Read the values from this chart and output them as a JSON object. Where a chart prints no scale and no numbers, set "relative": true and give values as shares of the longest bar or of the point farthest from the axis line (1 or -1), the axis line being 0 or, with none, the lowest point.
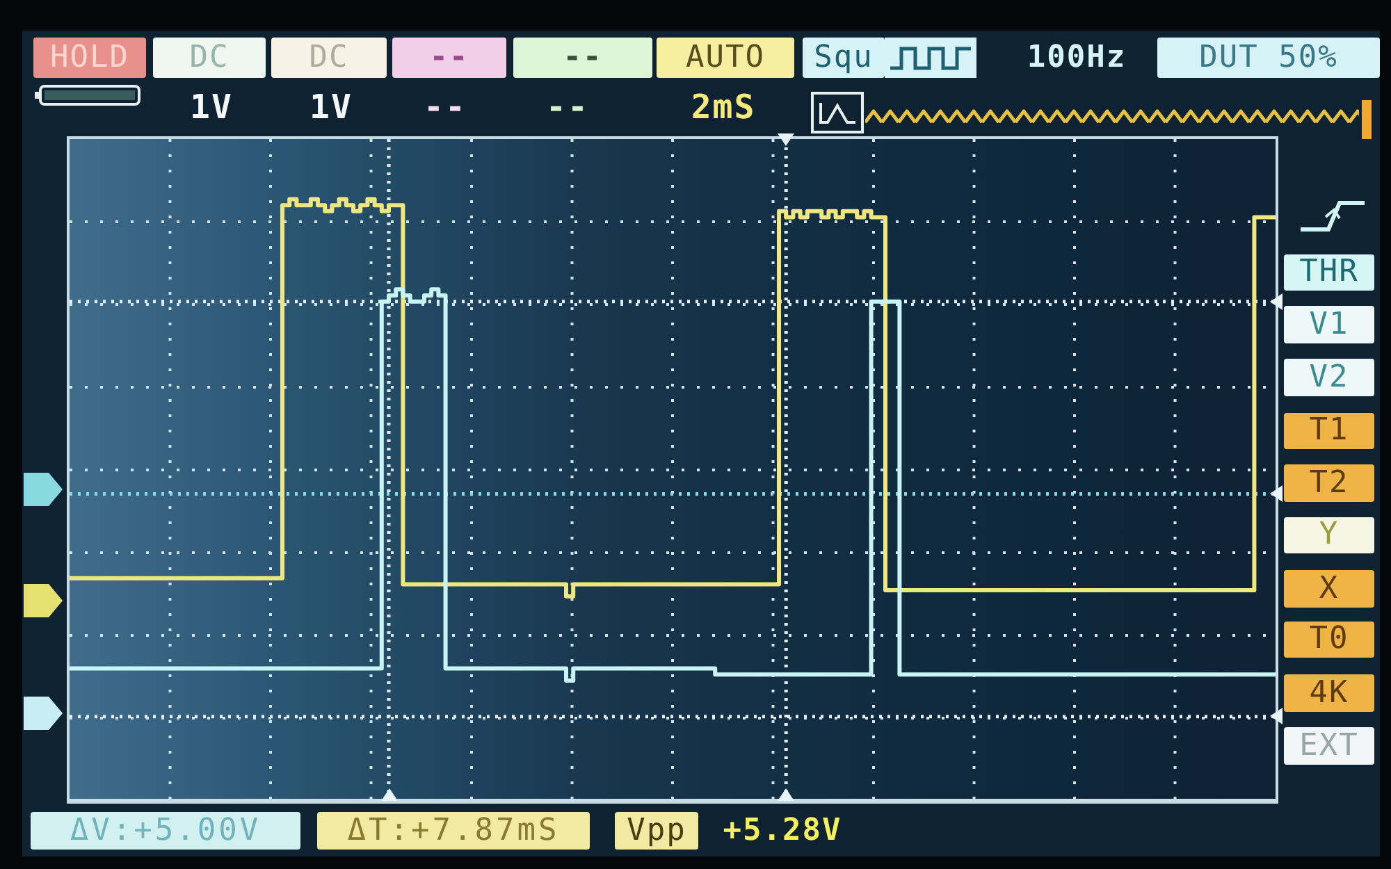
{
  "chart_data": {
    "type": "step",
    "relative": true,
    "grid": true,
    "categories": [
      null,
      null,
      null,
      null,
      null,
      null,
      null,
      null,
      null,
      null,
      null,
      null,
      null,
      null,
      null,
      null,
      null,
      null,
      null,
      null,
      null,
      null,
      null,
      null,
      null,
      null,
      null,
      null,
      null,
      null,
      null,
      null,
      null,
      null,
      null,
      null,
      null,
      null,
      null,
      null,
      null,
      null,
      null,
      null,
      null,
      null,
      null,
      null,
      null,
      null,
      null,
      null,
      null,
      null,
      null,
      null,
      null,
      null,
      null,
      null,
      null,
      null,
      null,
      null,
      null,
      null,
      null,
      null,
      null,
      null,
      null,
      null,
      null,
      null,
      null,
      null,
      null,
      null,
      null,
      null,
      null,
      null,
      null,
      null,
      null,
      null,
      null,
      null,
      null,
      null,
      null,
      null,
      null,
      null,
      null,
      null,
      null,
      null,
      null,
      null,
      null,
      null,
      null,
      null,
      null,
      null,
      null,
      null,
      null,
      null,
      null,
      null,
      null,
      null,
      null,
      null,
      null,
      null,
      null,
      null,
      null,
      null,
      null,
      null,
      null,
      null,
      null,
      null,
      null,
      null,
      null,
      null,
      null,
      null,
      null,
      null,
      null,
      null,
      null,
      null,
      null,
      null,
      null,
      null,
      null,
      null,
      null,
      null,
      null,
      null,
      null,
      null,
      null,
      null,
      null,
      null,
      null,
      null,
      null,
      null,
      null,
      null,
      null,
      null,
      null,
      null,
      null,
      null,
      null,
      null,
      null
    ],
    "series": [
      {
        "color": "#f0e680",
        "values": [
          0.37,
          0.37,
          0.37,
          0.37,
          0.37,
          0.37,
          0.37,
          0.37,
          0.37,
          0.37,
          0.37,
          0.37,
          0.37,
          0.37,
          0.37,
          0.37,
          0.37,
          0.37,
          0.37,
          0.37,
          0.37,
          0.37,
          0.37,
          0.37,
          0.37,
          0.37,
          0.37,
          0.37,
          0.37,
          0.37,
          0.99,
          1,
          0.99,
          0.99,
          1,
          0.99,
          0.98,
          0.99,
          1,
          0.99,
          0.98,
          0.99,
          1,
          0.99,
          0.98,
          0.99,
          0.99,
          0.36,
          0.36,
          0.36,
          0.36,
          0.36,
          0.36,
          0.36,
          0.36,
          0.36,
          0.36,
          0.36,
          0.36,
          0.36,
          0.36,
          0.36,
          0.36,
          0.36,
          0.36,
          0.36,
          0.36,
          0.36,
          0.36,
          0.36,
          0.34,
          0.36,
          0.36,
          0.36,
          0.36,
          0.36,
          0.36,
          0.36,
          0.36,
          0.36,
          0.36,
          0.36,
          0.36,
          0.36,
          0.36,
          0.36,
          0.36,
          0.36,
          0.36,
          0.36,
          0.36,
          0.36,
          0.36,
          0.36,
          0.36,
          0.36,
          0.36,
          0.36,
          0.36,
          0.36,
          0.98,
          0.97,
          0.98,
          0.97,
          0.98,
          0.98,
          0.97,
          0.98,
          0.97,
          0.98,
          0.98,
          0.97,
          0.98,
          0.97,
          0.97,
          0.35,
          0.35,
          0.35,
          0.35,
          0.35,
          0.35,
          0.35,
          0.35,
          0.35,
          0.35,
          0.35,
          0.35,
          0.35,
          0.35,
          0.35,
          0.35,
          0.35,
          0.35,
          0.35,
          0.35,
          0.35,
          0.35,
          0.35,
          0.35,
          0.35,
          0.35,
          0.35,
          0.35,
          0.35,
          0.35,
          0.35,
          0.35,
          0.35,
          0.35,
          0.35,
          0.35,
          0.35,
          0.35,
          0.35,
          0.35,
          0.35,
          0.35,
          0.35,
          0.35,
          0.35,
          0.35,
          0.35,
          0.35,
          0.35,
          0.35,
          0.35,
          0.35,
          0.97,
          0.97,
          0.97,
          0.97
        ]
      },
      {
        "color": "#c8f4f4",
        "values": [
          0.22,
          0.22,
          0.22,
          0.22,
          0.22,
          0.22,
          0.22,
          0.22,
          0.22,
          0.22,
          0.22,
          0.22,
          0.22,
          0.22,
          0.22,
          0.22,
          0.22,
          0.22,
          0.22,
          0.22,
          0.22,
          0.22,
          0.22,
          0.22,
          0.22,
          0.22,
          0.22,
          0.22,
          0.22,
          0.22,
          0.22,
          0.22,
          0.22,
          0.22,
          0.22,
          0.22,
          0.22,
          0.22,
          0.22,
          0.22,
          0.22,
          0.22,
          0.22,
          0.22,
          0.83,
          0.84,
          0.85,
          0.84,
          0.83,
          0.83,
          0.84,
          0.85,
          0.84,
          0.22,
          0.22,
          0.22,
          0.22,
          0.22,
          0.22,
          0.22,
          0.22,
          0.22,
          0.22,
          0.22,
          0.22,
          0.22,
          0.22,
          0.22,
          0.22,
          0.22,
          0.2,
          0.22,
          0.22,
          0.22,
          0.22,
          0.22,
          0.22,
          0.22,
          0.22,
          0.22,
          0.22,
          0.22,
          0.22,
          0.22,
          0.22,
          0.22,
          0.22,
          0.22,
          0.22,
          0.22,
          0.22,
          0.21,
          0.21,
          0.21,
          0.21,
          0.21,
          0.21,
          0.21,
          0.21,
          0.21,
          0.21,
          0.21,
          0.21,
          0.21,
          0.21,
          0.21,
          0.21,
          0.21,
          0.21,
          0.21,
          0.21,
          0.21,
          0.21,
          0.83,
          0.83,
          0.83,
          0.83,
          0.21,
          0.21,
          0.21,
          0.21,
          0.21,
          0.21,
          0.21,
          0.21,
          0.21,
          0.21,
          0.21,
          0.21,
          0.21,
          0.21,
          0.21,
          0.21,
          0.21,
          0.21,
          0.21,
          0.21,
          0.21,
          0.21,
          0.21,
          0.21,
          0.21,
          0.21,
          0.21,
          0.21,
          0.21,
          0.21,
          0.21,
          0.21,
          0.21,
          0.21,
          0.21,
          0.21,
          0.21,
          0.21,
          0.21,
          0.21,
          0.21,
          0.21,
          0.21,
          0.21,
          0.21,
          0.21,
          0.21,
          0.21,
          0.21,
          0.21,
          0.21,
          0.21,
          0.21,
          0.21
        ]
      }
    ],
    "ref_lines": [
      {
        "axis": "y",
        "value": 0.83,
        "color": "#e4eef2",
        "line_style": "dotted"
      },
      {
        "axis": "y",
        "value": 0.51,
        "color": "#86dce4",
        "line_style": "dotted"
      },
      {
        "axis": "y",
        "value": 0.14,
        "color": "#e4eef2",
        "line_style": "dotted"
      }
    ],
    "annotations": [
      "HOLD",
      "DC",
      "DC",
      "--",
      "--",
      "AUTO",
      "Squ",
      "100Hz",
      "DUT 50%",
      "1V",
      "1V",
      "--",
      "--",
      "2mS",
      "THR",
      "V1",
      "V2",
      "T1",
      "T2",
      "Y",
      "X",
      "T0",
      "4K",
      "EXT",
      "ΔV:+5.00V",
      "ΔT:+7.87mS",
      "Vpp",
      "+5.28V"
    ]
  }
}
